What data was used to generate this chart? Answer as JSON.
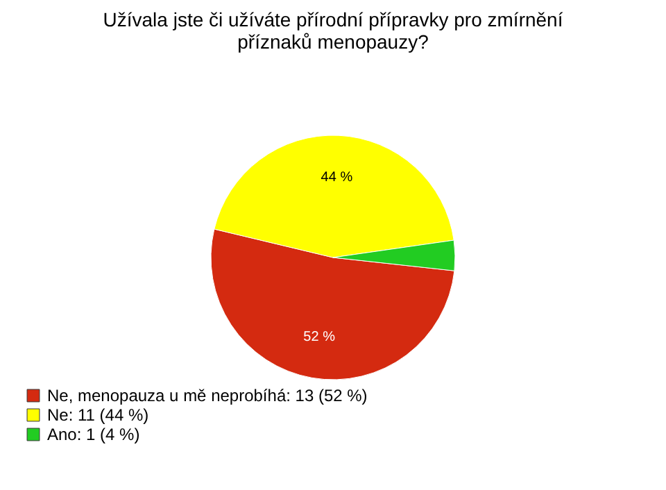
{
  "chart_data": {
    "type": "pie",
    "title": "Užívala jste či užíváte přírodní přípravky pro zmírnění příznaků menopauzy?",
    "categories": [
      "Ne, menopauza u mě neprobíhá: 13 (52 %)",
      "Ne: 11 (44 %)",
      "Ano: 1 (4 %)"
    ],
    "values": [
      52,
      44,
      4
    ],
    "colors": [
      "#d42a10",
      "#ffff00",
      "#22cc22"
    ],
    "value_labels": [
      "52 %",
      "44 %",
      null
    ],
    "legend": "bottom left"
  }
}
